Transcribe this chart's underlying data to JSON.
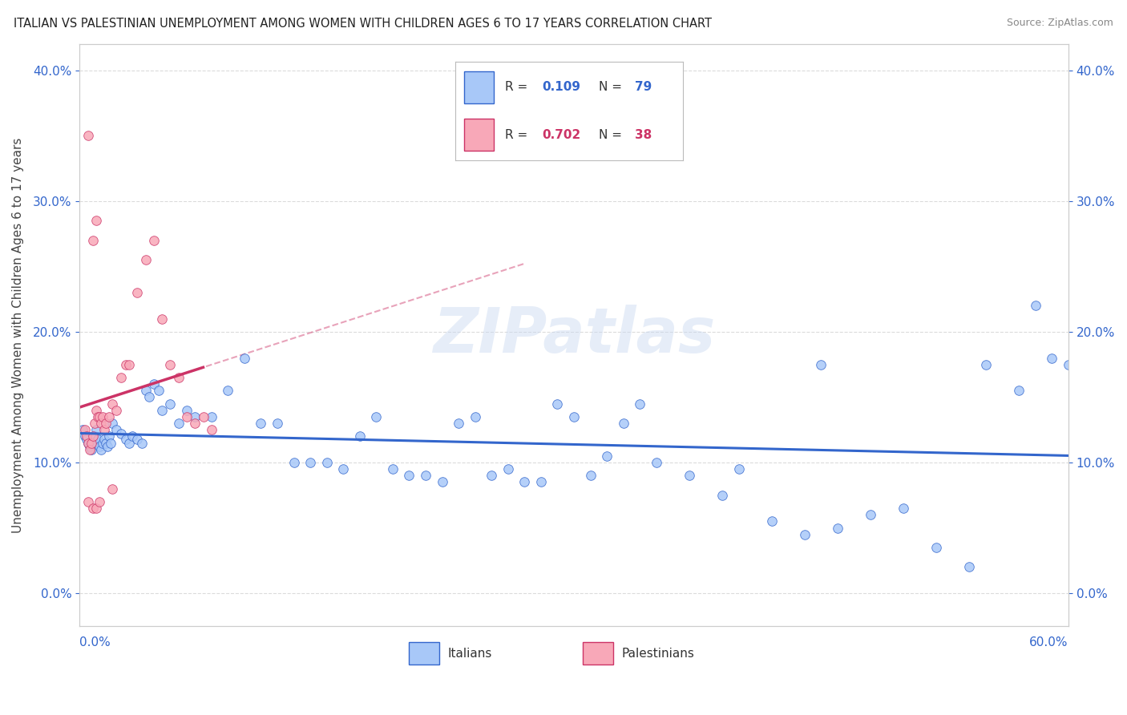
{
  "title": "ITALIAN VS PALESTINIAN UNEMPLOYMENT AMONG WOMEN WITH CHILDREN AGES 6 TO 17 YEARS CORRELATION CHART",
  "source": "Source: ZipAtlas.com",
  "ylabel": "Unemployment Among Women with Children Ages 6 to 17 years",
  "xlim": [
    0.0,
    0.6
  ],
  "ylim": [
    -0.025,
    0.42
  ],
  "yticks": [
    0.0,
    0.1,
    0.2,
    0.3,
    0.4
  ],
  "ytick_labels": [
    "0.0%",
    "10.0%",
    "20.0%",
    "30.0%",
    "40.0%"
  ],
  "italian_R": "0.109",
  "italian_N": "79",
  "palestinian_R": "0.702",
  "palestinian_N": "38",
  "italian_color": "#a8c8f8",
  "palestinian_color": "#f8a8b8",
  "italian_line_color": "#3366cc",
  "palestinian_line_color": "#cc3366",
  "italian_scatter_x": [
    0.002,
    0.003,
    0.004,
    0.005,
    0.006,
    0.007,
    0.008,
    0.009,
    0.01,
    0.011,
    0.012,
    0.013,
    0.014,
    0.015,
    0.016,
    0.017,
    0.018,
    0.019,
    0.02,
    0.022,
    0.025,
    0.028,
    0.03,
    0.032,
    0.035,
    0.038,
    0.04,
    0.042,
    0.045,
    0.048,
    0.05,
    0.055,
    0.06,
    0.065,
    0.07,
    0.08,
    0.09,
    0.1,
    0.11,
    0.12,
    0.13,
    0.14,
    0.15,
    0.16,
    0.17,
    0.18,
    0.19,
    0.2,
    0.21,
    0.22,
    0.23,
    0.24,
    0.25,
    0.26,
    0.27,
    0.28,
    0.29,
    0.3,
    0.31,
    0.32,
    0.33,
    0.34,
    0.35,
    0.37,
    0.39,
    0.4,
    0.42,
    0.44,
    0.45,
    0.46,
    0.48,
    0.5,
    0.52,
    0.54,
    0.55,
    0.57,
    0.58,
    0.59,
    0.6
  ],
  "italian_scatter_y": [
    0.125,
    0.12,
    0.118,
    0.115,
    0.112,
    0.11,
    0.115,
    0.12,
    0.125,
    0.118,
    0.112,
    0.11,
    0.115,
    0.118,
    0.115,
    0.112,
    0.12,
    0.115,
    0.13,
    0.125,
    0.122,
    0.118,
    0.115,
    0.12,
    0.118,
    0.115,
    0.155,
    0.15,
    0.16,
    0.155,
    0.14,
    0.145,
    0.13,
    0.14,
    0.135,
    0.135,
    0.155,
    0.18,
    0.13,
    0.13,
    0.1,
    0.1,
    0.1,
    0.095,
    0.12,
    0.135,
    0.095,
    0.09,
    0.09,
    0.085,
    0.13,
    0.135,
    0.09,
    0.095,
    0.085,
    0.085,
    0.145,
    0.135,
    0.09,
    0.105,
    0.13,
    0.145,
    0.1,
    0.09,
    0.075,
    0.095,
    0.055,
    0.045,
    0.175,
    0.05,
    0.06,
    0.065,
    0.035,
    0.02,
    0.175,
    0.155,
    0.22,
    0.18,
    0.175
  ],
  "palestinian_scatter_x": [
    0.003,
    0.004,
    0.005,
    0.006,
    0.007,
    0.008,
    0.009,
    0.01,
    0.011,
    0.012,
    0.013,
    0.014,
    0.015,
    0.016,
    0.018,
    0.02,
    0.022,
    0.025,
    0.028,
    0.03,
    0.035,
    0.04,
    0.045,
    0.05,
    0.055,
    0.06,
    0.065,
    0.07,
    0.075,
    0.08,
    0.005,
    0.008,
    0.01,
    0.012,
    0.005,
    0.008,
    0.01,
    0.02
  ],
  "palestinian_scatter_y": [
    0.125,
    0.12,
    0.115,
    0.11,
    0.115,
    0.12,
    0.13,
    0.14,
    0.135,
    0.135,
    0.13,
    0.135,
    0.125,
    0.13,
    0.135,
    0.145,
    0.14,
    0.165,
    0.175,
    0.175,
    0.23,
    0.255,
    0.27,
    0.21,
    0.175,
    0.165,
    0.135,
    0.13,
    0.135,
    0.125,
    0.07,
    0.065,
    0.065,
    0.07,
    0.35,
    0.27,
    0.285,
    0.08
  ],
  "watermark": "ZIPatlas",
  "background_color": "#ffffff",
  "grid_color": "#cccccc"
}
